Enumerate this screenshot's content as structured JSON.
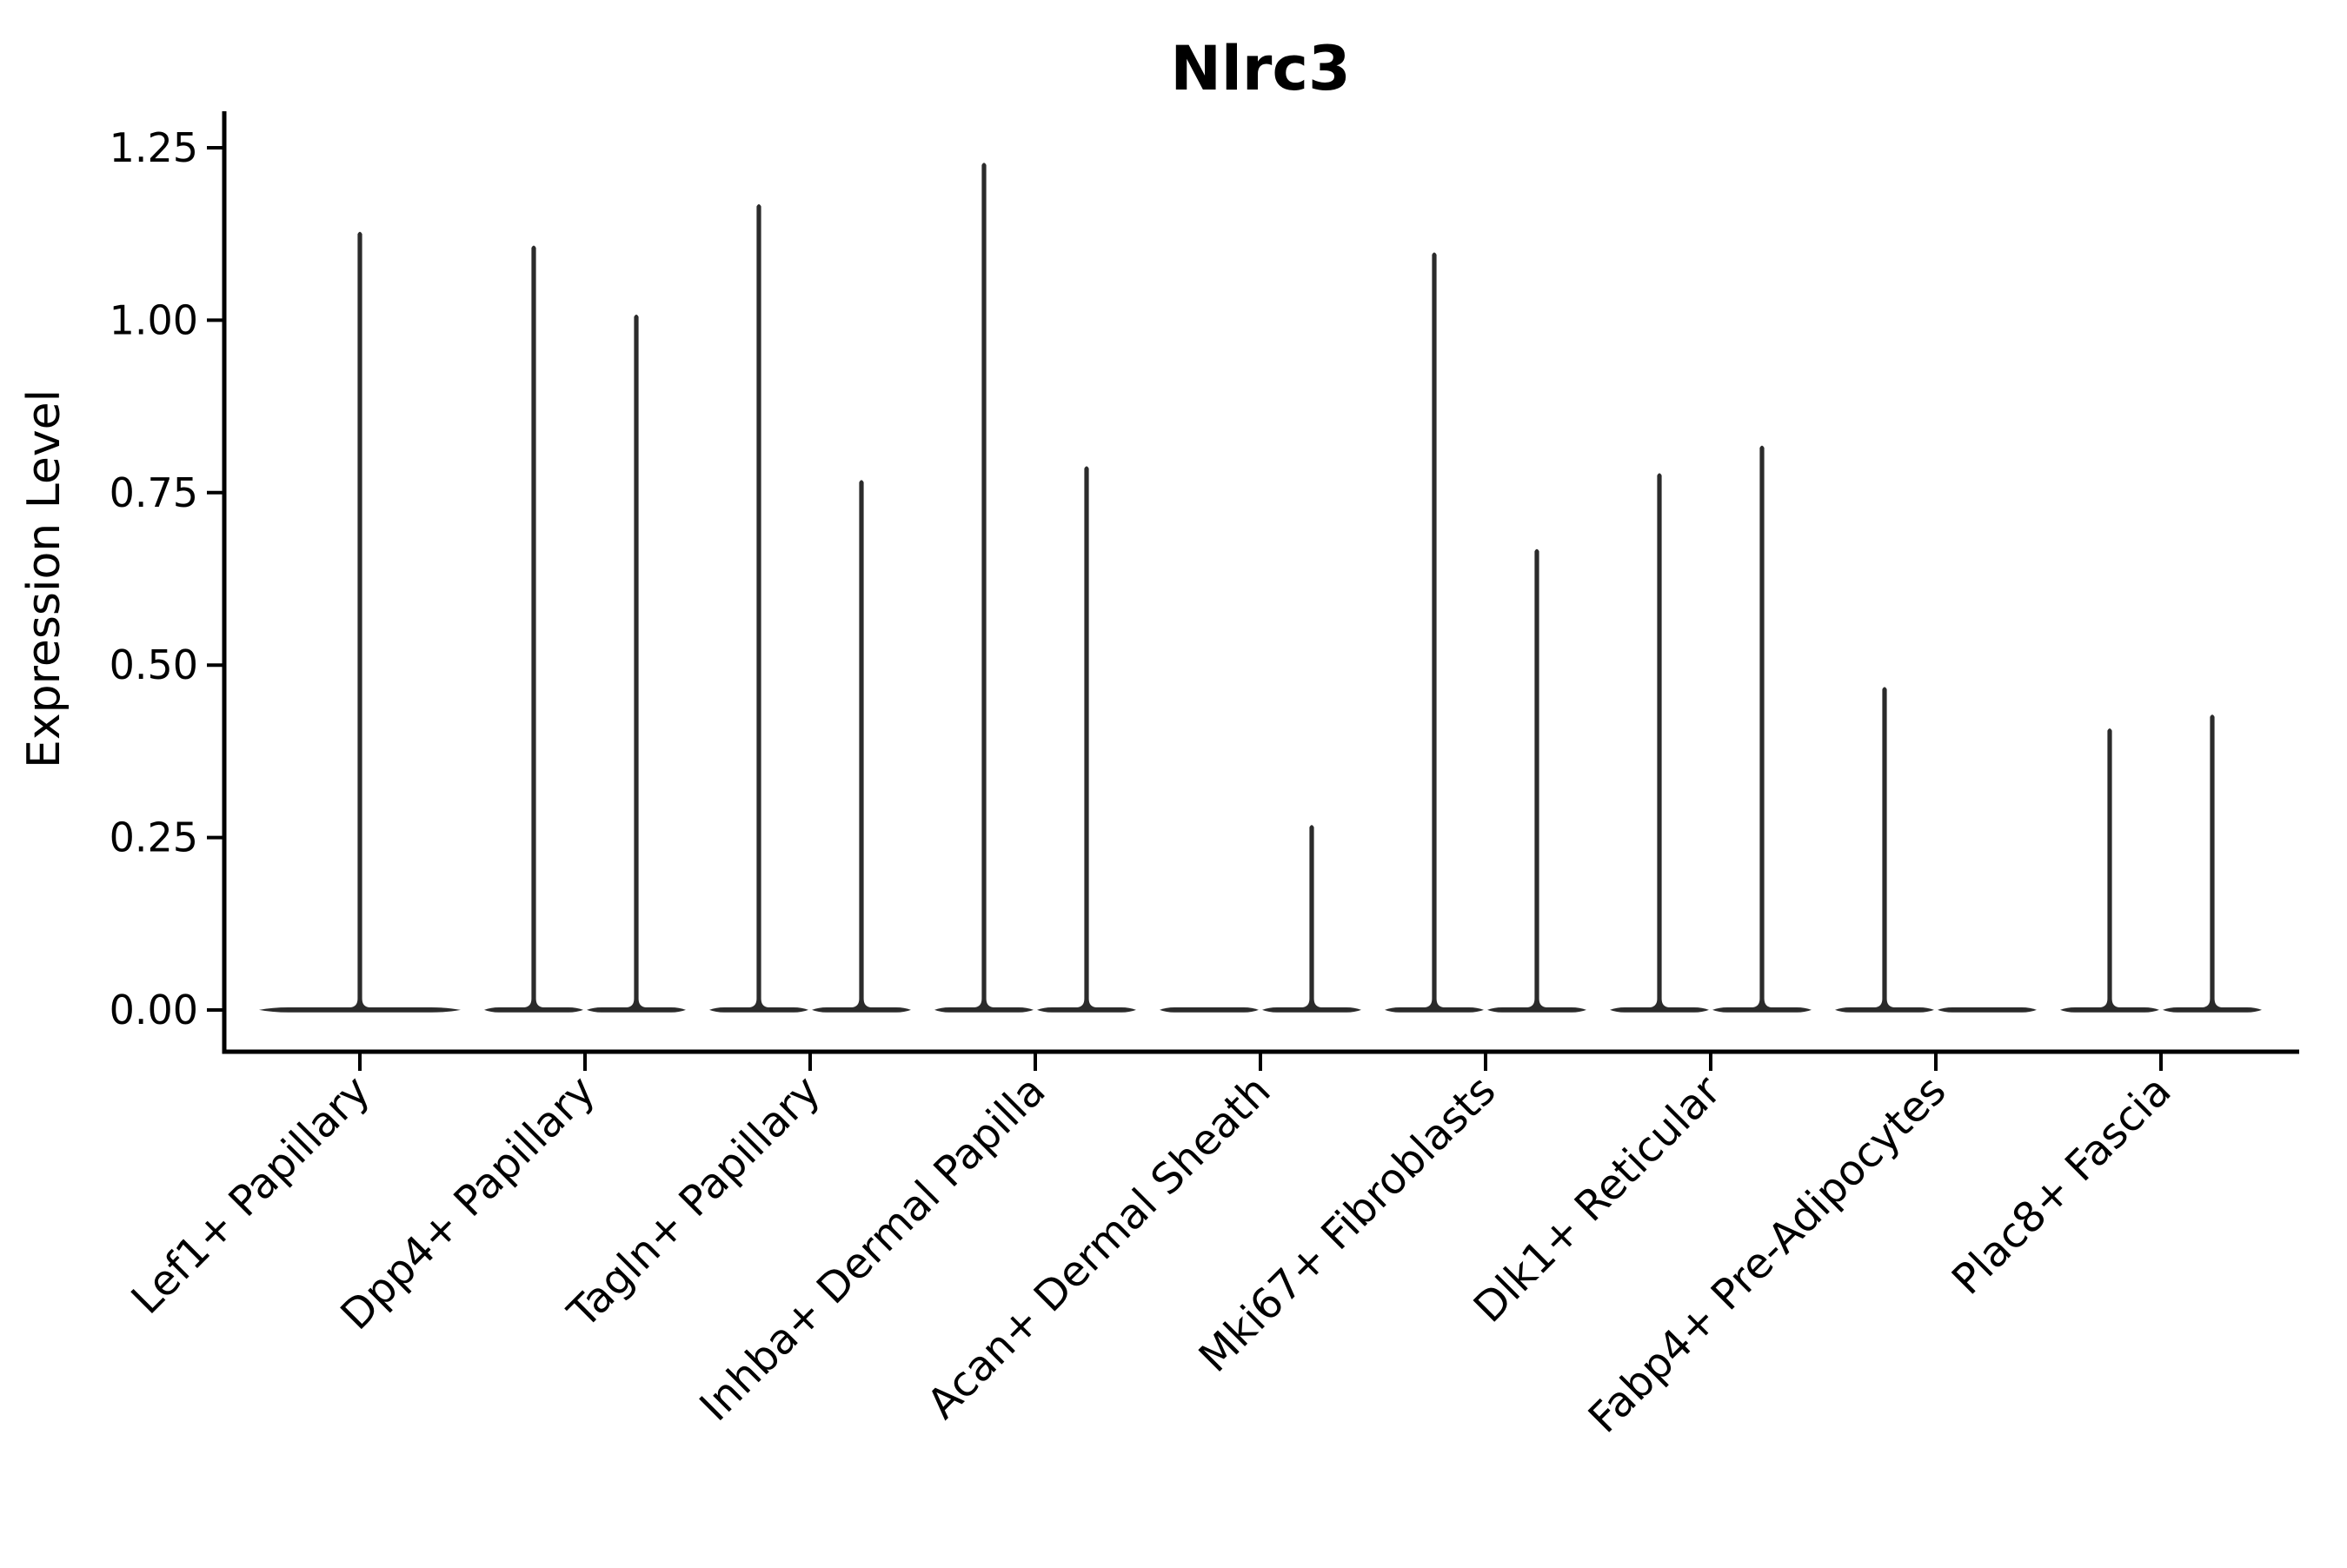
{
  "chart_data": {
    "type": "violin",
    "title": "Nlrc3",
    "ylabel": "Expression Level",
    "xlabel": "",
    "ylim": [
      0,
      1.3
    ],
    "yticks": [
      0.0,
      0.25,
      0.5,
      0.75,
      1.0,
      1.25
    ],
    "ytick_labels": [
      "0.00",
      "0.25",
      "0.50",
      "0.75",
      "1.00",
      "1.25"
    ],
    "grid": false,
    "legend": "none",
    "x_labels_rotation_deg": 45,
    "violin_color": "#2b2b2b",
    "axis_color": "#000000",
    "description": "Stacked-spike style violin plot; each violin is flat at expression 0 with a thin spike rising to its maximum expression value. Categories with layout 'pair' contain two half-width violins side by side; 'single' is one full-width violin.",
    "categories": [
      {
        "label": "Lef1+ Papillary",
        "layout": "single",
        "spike_maxima": [
          1.13
        ]
      },
      {
        "label": "Dpp4+ Papillary",
        "layout": "pair",
        "spike_maxima": [
          1.11,
          1.01
        ]
      },
      {
        "label": "Tagln+ Papillary",
        "layout": "pair",
        "spike_maxima": [
          1.17,
          0.77
        ]
      },
      {
        "label": "Inhba+ Dermal Papilla",
        "layout": "pair",
        "spike_maxima": [
          1.23,
          0.79
        ]
      },
      {
        "label": "Acan+ Dermal Sheath",
        "layout": "pair",
        "spike_maxima": [
          0.0,
          0.27
        ]
      },
      {
        "label": "Mki67+ Fibroblasts",
        "layout": "pair",
        "spike_maxima": [
          1.1,
          0.67
        ]
      },
      {
        "label": "Dlk1+ Reticular",
        "layout": "pair",
        "spike_maxima": [
          0.78,
          0.82
        ]
      },
      {
        "label": "Fabp4+ Pre-Adipocytes",
        "layout": "pair",
        "spike_maxima": [
          0.47,
          0.0
        ]
      },
      {
        "label": "Plac8+ Fascia",
        "layout": "pair",
        "spike_maxima": [
          0.41,
          0.43
        ]
      }
    ]
  }
}
